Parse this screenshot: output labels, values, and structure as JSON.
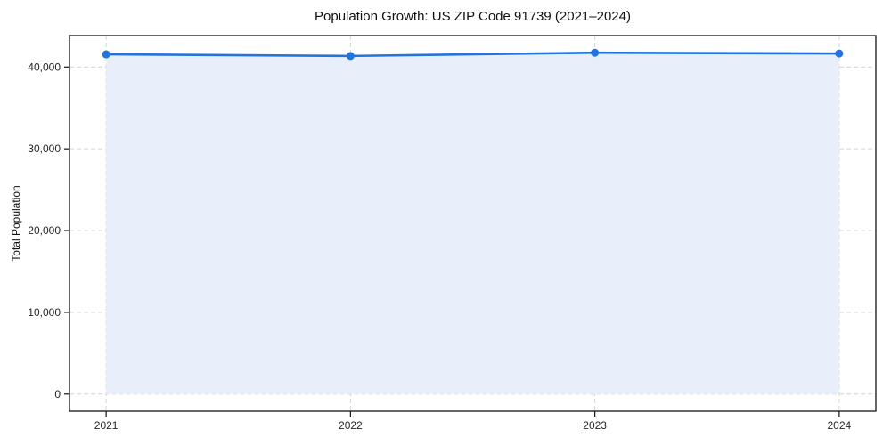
{
  "chart_data": {
    "type": "line",
    "title": "Population Growth: US ZIP Code 91739 (2021–2024)",
    "xlabel": "",
    "ylabel": "Total Population",
    "x": [
      2021,
      2022,
      2023,
      2024
    ],
    "series": [
      {
        "name": "Total Population",
        "values": [
          41550,
          41350,
          41750,
          41650
        ]
      }
    ],
    "xtick_labels": [
      "2021",
      "2022",
      "2023",
      "2024"
    ],
    "yticks": [
      0,
      10000,
      20000,
      30000,
      40000
    ],
    "ytick_labels": [
      "0",
      "10,000",
      "20,000",
      "30,000",
      "40,000"
    ],
    "xlim": [
      2020.85,
      2024.15
    ],
    "ylim": [
      -2090,
      43840
    ],
    "grid": "dashed-both",
    "legend": "none",
    "area_fill_baseline": 0,
    "marker": "circle",
    "colors": {
      "line": "#2273dc",
      "marker": "#2273dc",
      "area_fill": "#e8effb",
      "grid": "#d4d4d4",
      "spine": "#141414",
      "tick_text": "#262626",
      "title_text": "#111111",
      "background": "#ffffff"
    }
  }
}
